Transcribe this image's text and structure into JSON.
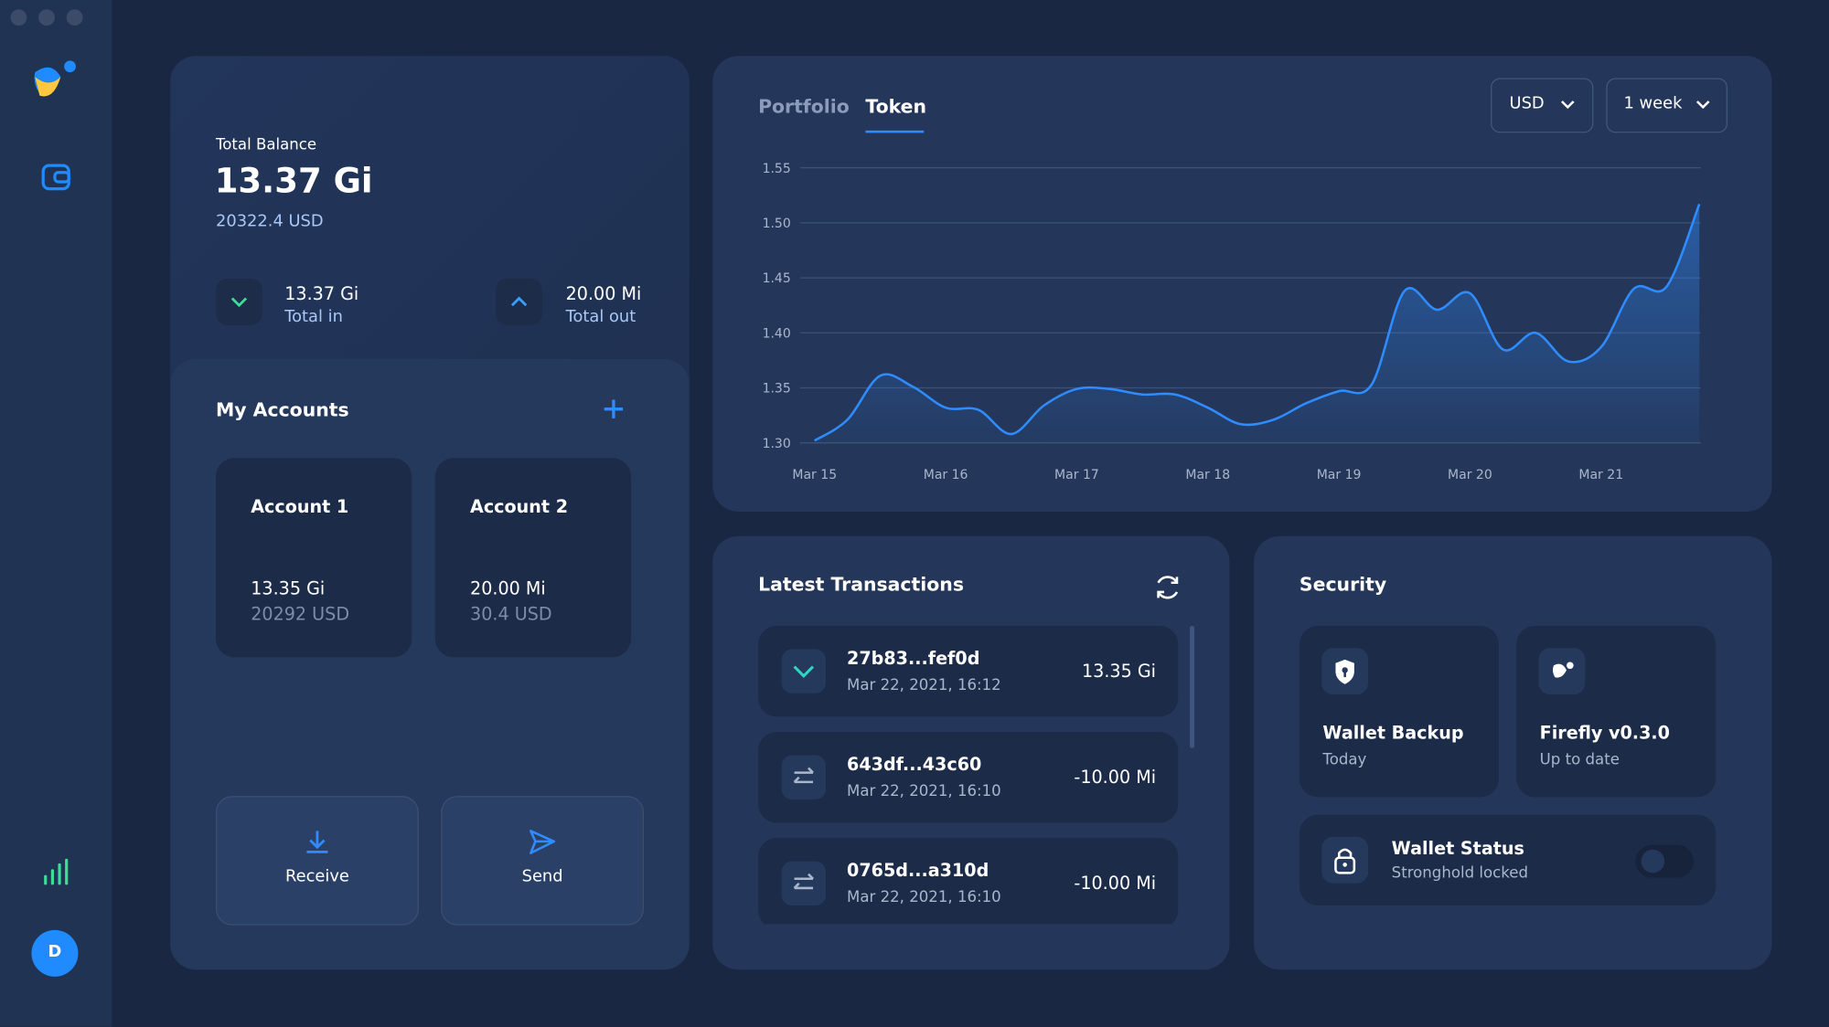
{
  "sidebar": {
    "avatar": "D"
  },
  "balance": {
    "label": "Total Balance",
    "amount": "13.37 Gi",
    "fiat": "20322.4 USD",
    "total_in": {
      "amount": "13.37 Gi",
      "label": "Total in"
    },
    "total_out": {
      "amount": "20.00 Mi",
      "label": "Total out"
    }
  },
  "accounts": {
    "title": "My Accounts",
    "items": [
      {
        "name": "Account 1",
        "amount": "13.35 Gi",
        "fiat": "20292 USD"
      },
      {
        "name": "Account 2",
        "amount": "20.00 Mi",
        "fiat": "30.4 USD"
      }
    ],
    "actions": [
      "Receive",
      "Send"
    ]
  },
  "chart_panel": {
    "tabs": [
      "Portfolio",
      "Token"
    ],
    "currency": "USD",
    "range": "1 week"
  },
  "chart_data": {
    "type": "line",
    "x": [
      15,
      15.25,
      15.5,
      15.75,
      16,
      16.25,
      16.5,
      16.75,
      17,
      17.25,
      17.5,
      17.75,
      18,
      18.25,
      18.5,
      18.75,
      19,
      19.25,
      19.5,
      19.75,
      20,
      20.25,
      20.5,
      20.75,
      21,
      21.25,
      21.5,
      21.75
    ],
    "series": [
      {
        "color": "#2f8cff",
        "values": [
          1.302,
          1.321,
          1.361,
          1.351,
          1.332,
          1.33,
          1.308,
          1.334,
          1.349,
          1.349,
          1.344,
          1.344,
          1.332,
          1.317,
          1.321,
          1.336,
          1.347,
          1.353,
          1.438,
          1.421,
          1.436,
          1.385,
          1.4,
          1.374,
          1.387,
          1.44,
          1.442,
          1.517
        ]
      }
    ],
    "xlim": [
      14.89,
      21.76
    ],
    "xticks": [
      {
        "value": 15,
        "label": "Mar 15"
      },
      {
        "value": 16,
        "label": "Mar 16"
      },
      {
        "value": 17,
        "label": "Mar 17"
      },
      {
        "value": 18,
        "label": "Mar 18"
      },
      {
        "value": 19,
        "label": "Mar 19"
      },
      {
        "value": 20,
        "label": "Mar 20"
      },
      {
        "value": 21,
        "label": "Mar 21"
      }
    ],
    "ylim": [
      1.3,
      1.55
    ],
    "yticks": [
      {
        "value": 1.3,
        "label": "1.30"
      },
      1.35,
      {
        "value": 1.4,
        "label": "1.40"
      },
      1.45,
      {
        "value": 1.5,
        "label": "1.50"
      },
      1.55
    ],
    "grid": true
  },
  "transactions": {
    "title": "Latest Transactions",
    "items": [
      {
        "id": "27b83...fef0d",
        "date": "Mar 22, 2021, 16:12",
        "amount": "13.35 Gi"
      },
      {
        "id": "643df...43c60",
        "date": "Mar 22, 2021, 16:10",
        "amount": "-10.00 Mi"
      },
      {
        "id": "0765d...a310d",
        "date": "Mar 22, 2021, 16:10",
        "amount": "-10.00 Mi"
      }
    ]
  },
  "security": {
    "title": "Security",
    "items": [
      {
        "title": "Wallet Backup",
        "subtitle": "Today"
      },
      {
        "title": "Firefly v0.3.0",
        "subtitle": "Up to date"
      },
      {
        "title": "Wallet Status",
        "subtitle": "Stronghold locked"
      }
    ]
  }
}
